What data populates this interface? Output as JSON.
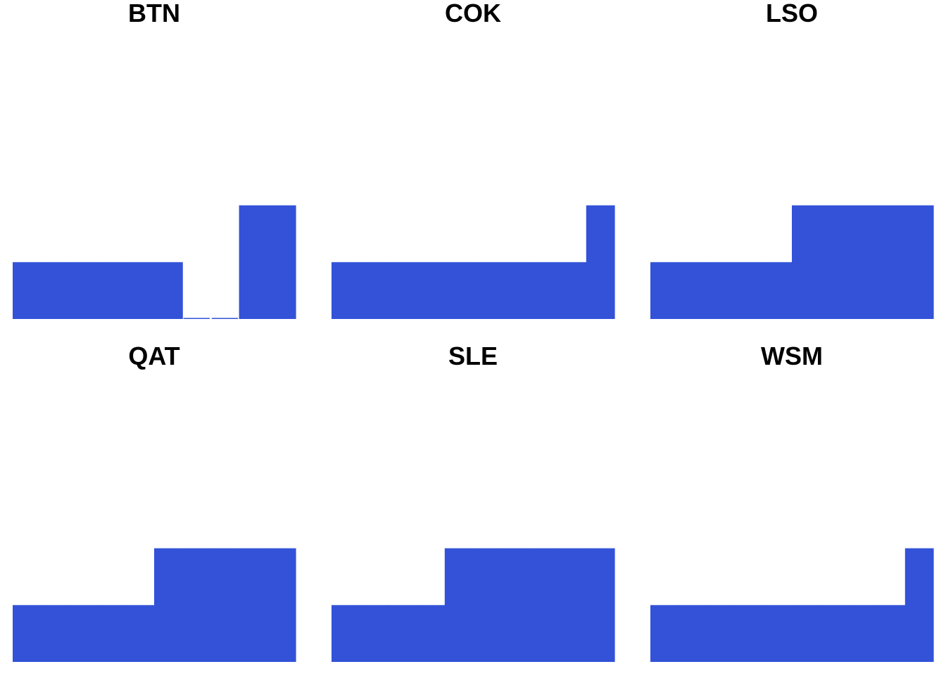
{
  "colors": {
    "bar": "#3352D8",
    "background": "#FFFFFF",
    "title": "#000000"
  },
  "chart_data": [
    {
      "type": "bar",
      "title": "BTN",
      "values": [
        1,
        1,
        1,
        1,
        1,
        1,
        0,
        0,
        2,
        2
      ],
      "ylim": [
        0,
        5.6
      ]
    },
    {
      "type": "bar",
      "title": "COK",
      "values": [
        1,
        1,
        1,
        1,
        1,
        1,
        1,
        1,
        1,
        2
      ],
      "ylim": [
        0,
        5.6
      ]
    },
    {
      "type": "bar",
      "title": "LSO",
      "values": [
        1,
        1,
        1,
        1,
        1,
        2,
        2,
        2,
        2,
        2
      ],
      "ylim": [
        0,
        5.6
      ]
    },
    {
      "type": "bar",
      "title": "QAT",
      "values": [
        1,
        1,
        1,
        1,
        1,
        2,
        2,
        2,
        2,
        2
      ],
      "ylim": [
        0,
        5.6
      ]
    },
    {
      "type": "bar",
      "title": "SLE",
      "values": [
        1,
        1,
        1,
        1,
        2,
        2,
        2,
        2,
        2,
        2
      ],
      "ylim": [
        0,
        5.6
      ]
    },
    {
      "type": "bar",
      "title": "WSM",
      "values": [
        1,
        1,
        1,
        1,
        1,
        1,
        1,
        1,
        1,
        2
      ],
      "ylim": [
        0,
        5.6
      ]
    }
  ]
}
